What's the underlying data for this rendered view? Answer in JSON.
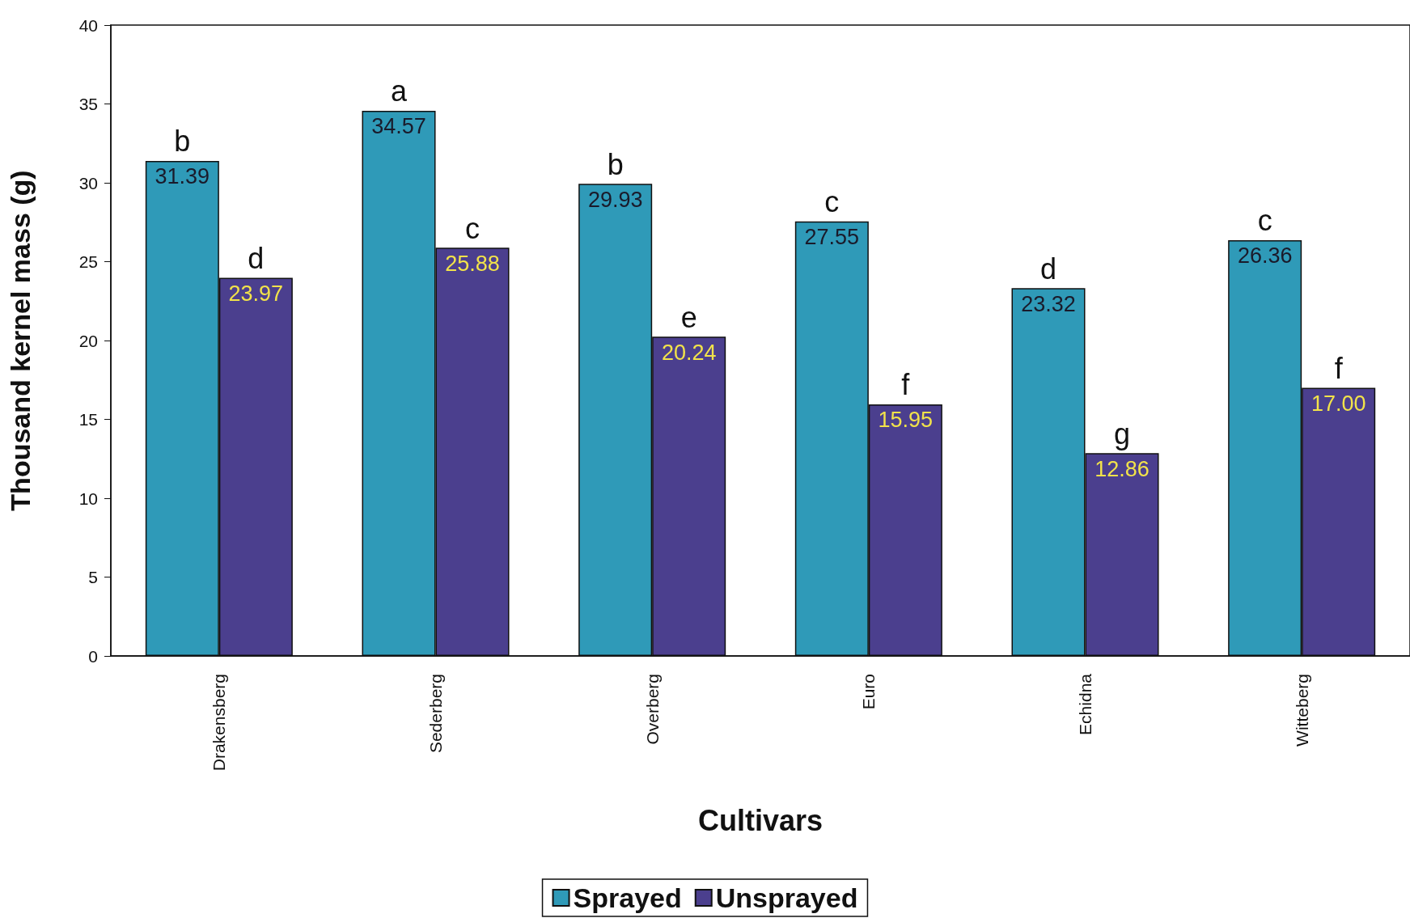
{
  "chart_data": {
    "type": "bar",
    "xlabel": "Cultivars",
    "ylabel": "Thousand kernel mass (g)",
    "categories": [
      "Drakensberg",
      "Sederberg",
      "Overberg",
      "Euro",
      "Echidna",
      "Witteberg"
    ],
    "series": [
      {
        "name": "Sprayed",
        "color": "#2f9ab8",
        "values": [
          31.39,
          34.57,
          29.93,
          27.55,
          23.32,
          26.36
        ],
        "value_labels": [
          "31.39",
          "34.57",
          "29.93",
          "27.55",
          "23.32",
          "26.36"
        ]
      },
      {
        "name": "Unsprayed",
        "color": "#4b3f8e",
        "values": [
          23.97,
          25.88,
          20.24,
          15.95,
          12.86,
          17.0
        ],
        "value_labels": [
          "23.97",
          "25.88",
          "20.24",
          "15.95",
          "12.86",
          "17.00"
        ]
      }
    ],
    "ylim": [
      0,
      40
    ],
    "yticks": [
      0,
      5,
      10,
      15,
      20,
      25,
      30,
      35,
      40
    ],
    "grid": false,
    "legend": "bottom",
    "annotations": [
      {
        "text": "b",
        "x": "Drakensberg",
        "y": 31.39
      },
      {
        "text": "d",
        "x": "Drakensberg",
        "y": 23.97
      },
      {
        "text": "a",
        "x": "Sederberg",
        "y": 34.57
      },
      {
        "text": "c",
        "x": "Sederberg",
        "y": 25.88
      },
      {
        "text": "b",
        "x": "Overberg",
        "y": 29.93
      },
      {
        "text": "e",
        "x": "Overberg",
        "y": 20.24
      },
      {
        "text": "c",
        "x": "Euro",
        "y": 27.55
      },
      {
        "text": "f",
        "x": "Euro",
        "y": 15.95
      },
      {
        "text": "d",
        "x": "Echidna",
        "y": 23.32
      },
      {
        "text": "g",
        "x": "Echidna",
        "y": 12.86
      },
      {
        "text": "c",
        "x": "Witteberg",
        "y": 26.36
      },
      {
        "text": "f",
        "x": "Witteberg",
        "y": 17.0
      }
    ]
  }
}
